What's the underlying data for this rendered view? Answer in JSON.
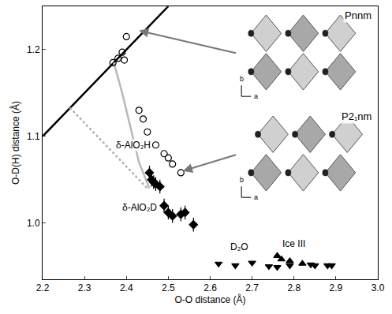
{
  "chart_data": {
    "type": "scatter",
    "xlabel": "O-O distance (Å)",
    "ylabel": "O-D(H) distance (Å)",
    "xlim": [
      2.2,
      3.0
    ],
    "xticks": [
      2.2,
      2.3,
      2.4,
      2.5,
      2.6,
      2.7,
      2.8,
      2.9,
      {
        "value": 3.0,
        "label": "3.0"
      }
    ],
    "ylim": [
      0.935,
      1.25
    ],
    "yticks": [
      {
        "value": 1.0,
        "label": "1.0"
      },
      1.1,
      1.2
    ],
    "series": [
      {
        "type": "line",
        "color": "#000000",
        "line_style": "solid",
        "x": [
          2.2,
          2.5
        ],
        "values": [
          1.1,
          1.25
        ]
      },
      {
        "type": "line",
        "color": "#b0b0b0",
        "line_style": "dotted",
        "x": [
          2.265,
          2.45
        ],
        "values": [
          1.133,
          1.04
        ]
      },
      {
        "type": "line",
        "color": "#b8b8b8",
        "line_style": "solid",
        "x": [
          2.37,
          2.39,
          2.41,
          2.43,
          2.455
        ],
        "values": [
          1.185,
          1.15,
          1.11,
          1.07,
          1.04
        ]
      },
      {
        "name": "δ-AlO₂H",
        "type": "scatter",
        "color": "#000000",
        "marker": "circle-open",
        "x": [
          2.368,
          2.38,
          2.395,
          2.39,
          2.4,
          2.43,
          2.44,
          2.45,
          2.47,
          2.49,
          2.5,
          2.51,
          2.53
        ],
        "values": [
          1.185,
          1.19,
          1.188,
          1.197,
          1.215,
          1.13,
          1.12,
          1.105,
          1.09,
          1.08,
          1.075,
          1.068,
          1.058
        ]
      },
      {
        "name": "δ-AlO₂D",
        "type": "scatter",
        "color": "#000000",
        "marker": "diamond",
        "x": [
          2.455,
          2.46,
          2.465,
          2.47,
          2.48,
          2.49,
          2.5,
          2.51,
          2.53,
          2.54,
          2.56
        ],
        "values": [
          1.058,
          1.05,
          1.047,
          1.045,
          1.042,
          1.02,
          1.012,
          1.008,
          1.01,
          1.012,
          0.998
        ],
        "error": [
          0.008,
          0.008,
          0.008,
          0.008,
          0.008,
          0.008,
          0.008,
          0.008,
          0.008,
          0.008,
          0.008
        ]
      },
      {
        "name": "D₂O",
        "type": "scatter",
        "color": "#000000",
        "marker": "triangle-down",
        "x": [
          2.62,
          2.66,
          2.7,
          2.74,
          2.76,
          2.79,
          2.84,
          2.85,
          2.88,
          2.89
        ],
        "values": [
          0.953,
          0.951,
          0.954,
          0.95,
          0.949,
          0.951,
          0.952,
          0.951,
          0.951,
          0.951
        ]
      },
      {
        "name": "Ice III",
        "type": "scatter",
        "color": "#000000",
        "marker": "triangle-up",
        "x": [
          2.76,
          2.77,
          2.79,
          2.82
        ],
        "values": [
          0.962,
          0.958,
          0.956,
          0.953
        ]
      }
    ],
    "annotations": [
      {
        "text": "δ-AlO₂H",
        "x": 2.46,
        "y": 1.09
      },
      {
        "text": "δ-AlO₂D",
        "x": 2.475,
        "y": 1.018
      },
      {
        "text": "D₂O",
        "x": 2.67,
        "y": 0.972
      },
      {
        "text": "Ice III",
        "x": 2.8,
        "y": 0.976
      }
    ],
    "structures": [
      {
        "label": "Pnnm",
        "axes": [
          "a",
          "b"
        ],
        "points_to": [
          2.43,
          1.222
        ]
      },
      {
        "label": "P2₁nm",
        "axes": [
          "a",
          "b"
        ],
        "points_to": [
          2.535,
          1.06
        ]
      }
    ]
  }
}
